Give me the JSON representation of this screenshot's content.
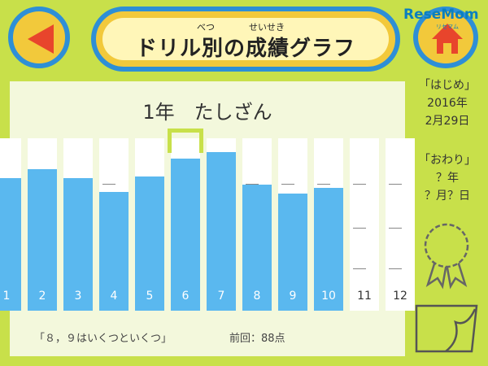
{
  "header": {
    "title": "ドリル別の成績グラフ",
    "ruby_betsu": "べつ",
    "ruby_seiseki": "せいせき"
  },
  "watermark": {
    "brand": "ReseMom",
    "sub": "リセマム"
  },
  "chart_data": {
    "type": "bar",
    "title": "1年　たしざん",
    "categories": [
      "1",
      "2",
      "3",
      "4",
      "5",
      "6",
      "7",
      "8",
      "9",
      "10",
      "11",
      "12"
    ],
    "values": [
      77,
      82,
      77,
      69,
      78,
      88,
      92,
      73,
      68,
      71,
      null,
      null
    ],
    "ylim": [
      0,
      100
    ],
    "highlighted_category": "6",
    "xlabel": "",
    "ylabel": "",
    "bar_color": "#5ab8ef"
  },
  "footer": {
    "lesson": "「８，９はいくつといくつ」",
    "previous": "前回：88点"
  },
  "sidebar": {
    "start_label": "「はじめ」",
    "start_year": "2016年",
    "start_date": "2月29日",
    "end_label": "「おわり」",
    "end_year": "？年",
    "end_date": "？月？日"
  },
  "colors": {
    "background": "#c8e04a",
    "accent": "#2e8fd6",
    "button": "#f2c93b",
    "arrow": "#e8452c"
  }
}
